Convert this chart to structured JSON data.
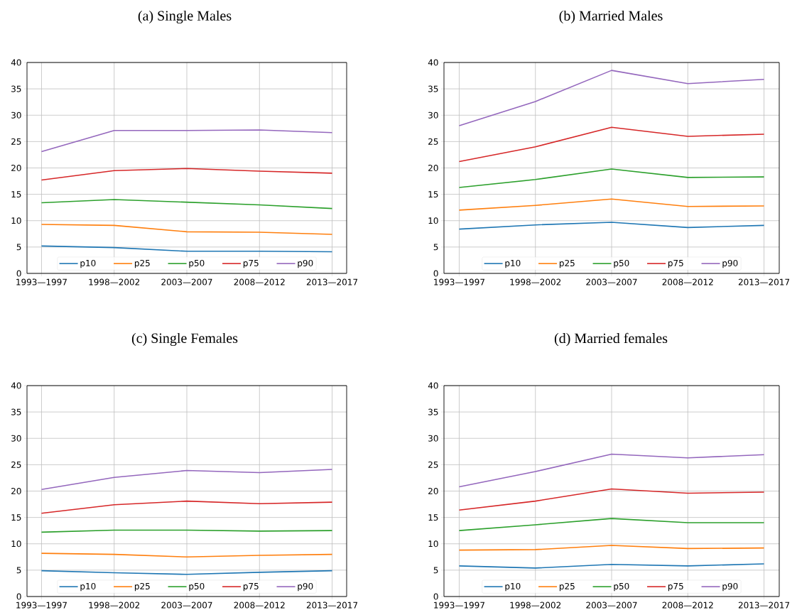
{
  "chart_data": [
    {
      "type": "line",
      "title": "(a) Single Males",
      "categories": [
        "1993—1997",
        "1998—2002",
        "2003—2007",
        "2008—2012",
        "2013—2017"
      ],
      "ylim": [
        0,
        40
      ],
      "yticks": [
        0,
        5,
        10,
        15,
        20,
        25,
        30,
        35,
        40
      ],
      "grid": true,
      "legend": "bottom",
      "series": [
        {
          "name": "p10",
          "color": "#1f77b4",
          "values": [
            5.2,
            4.9,
            4.2,
            4.2,
            4.1
          ]
        },
        {
          "name": "p25",
          "color": "#ff7f0e",
          "values": [
            9.3,
            9.1,
            7.9,
            7.8,
            7.4
          ]
        },
        {
          "name": "p50",
          "color": "#2ca02c",
          "values": [
            13.4,
            14.0,
            13.5,
            13.0,
            12.3
          ]
        },
        {
          "name": "p75",
          "color": "#d62728",
          "values": [
            17.7,
            19.5,
            19.9,
            19.4,
            19.0
          ]
        },
        {
          "name": "p90",
          "color": "#9467bd",
          "values": [
            23.1,
            27.1,
            27.1,
            27.2,
            26.7
          ]
        }
      ]
    },
    {
      "type": "line",
      "title": "(b) Married Males",
      "categories": [
        "1993—1997",
        "1998—2002",
        "2003—2007",
        "2008—2012",
        "2013—2017"
      ],
      "ylim": [
        0,
        40
      ],
      "yticks": [
        0,
        5,
        10,
        15,
        20,
        25,
        30,
        35,
        40
      ],
      "grid": true,
      "legend": "bottom",
      "series": [
        {
          "name": "p10",
          "color": "#1f77b4",
          "values": [
            8.4,
            9.2,
            9.7,
            8.7,
            9.1
          ]
        },
        {
          "name": "p25",
          "color": "#ff7f0e",
          "values": [
            12.0,
            12.9,
            14.1,
            12.7,
            12.8
          ]
        },
        {
          "name": "p50",
          "color": "#2ca02c",
          "values": [
            16.3,
            17.8,
            19.8,
            18.2,
            18.3
          ]
        },
        {
          "name": "p75",
          "color": "#d62728",
          "values": [
            21.2,
            24.0,
            27.7,
            26.0,
            26.4
          ]
        },
        {
          "name": "p90",
          "color": "#9467bd",
          "values": [
            28.0,
            32.6,
            38.5,
            36.0,
            36.8
          ]
        }
      ]
    },
    {
      "type": "line",
      "title": "(c) Single Females",
      "categories": [
        "1993—1997",
        "1998—2002",
        "2003—2007",
        "2008—2012",
        "2013—2017"
      ],
      "ylim": [
        0,
        40
      ],
      "yticks": [
        0,
        5,
        10,
        15,
        20,
        25,
        30,
        35,
        40
      ],
      "grid": true,
      "legend": "bottom",
      "series": [
        {
          "name": "p10",
          "color": "#1f77b4",
          "values": [
            4.9,
            4.5,
            4.2,
            4.6,
            4.9
          ]
        },
        {
          "name": "p25",
          "color": "#ff7f0e",
          "values": [
            8.2,
            8.0,
            7.5,
            7.8,
            8.0
          ]
        },
        {
          "name": "p50",
          "color": "#2ca02c",
          "values": [
            12.2,
            12.6,
            12.6,
            12.4,
            12.5
          ]
        },
        {
          "name": "p75",
          "color": "#d62728",
          "values": [
            15.8,
            17.4,
            18.1,
            17.6,
            17.9
          ]
        },
        {
          "name": "p90",
          "color": "#9467bd",
          "values": [
            20.3,
            22.6,
            23.9,
            23.5,
            24.1
          ]
        }
      ]
    },
    {
      "type": "line",
      "title": "(d) Married females",
      "categories": [
        "1993—1997",
        "1998—2002",
        "2003—2007",
        "2008—2012",
        "2013—2017"
      ],
      "ylim": [
        0,
        40
      ],
      "yticks": [
        0,
        5,
        10,
        15,
        20,
        25,
        30,
        35,
        40
      ],
      "grid": true,
      "legend": "bottom",
      "series": [
        {
          "name": "p10",
          "color": "#1f77b4",
          "values": [
            5.8,
            5.4,
            6.1,
            5.8,
            6.2
          ]
        },
        {
          "name": "p25",
          "color": "#ff7f0e",
          "values": [
            8.8,
            8.9,
            9.7,
            9.1,
            9.2
          ]
        },
        {
          "name": "p50",
          "color": "#2ca02c",
          "values": [
            12.5,
            13.6,
            14.8,
            14.0,
            14.0
          ]
        },
        {
          "name": "p75",
          "color": "#d62728",
          "values": [
            16.4,
            18.1,
            20.4,
            19.6,
            19.8
          ]
        },
        {
          "name": "p90",
          "color": "#9467bd",
          "values": [
            20.8,
            23.7,
            27.0,
            26.3,
            26.9
          ]
        }
      ]
    }
  ]
}
